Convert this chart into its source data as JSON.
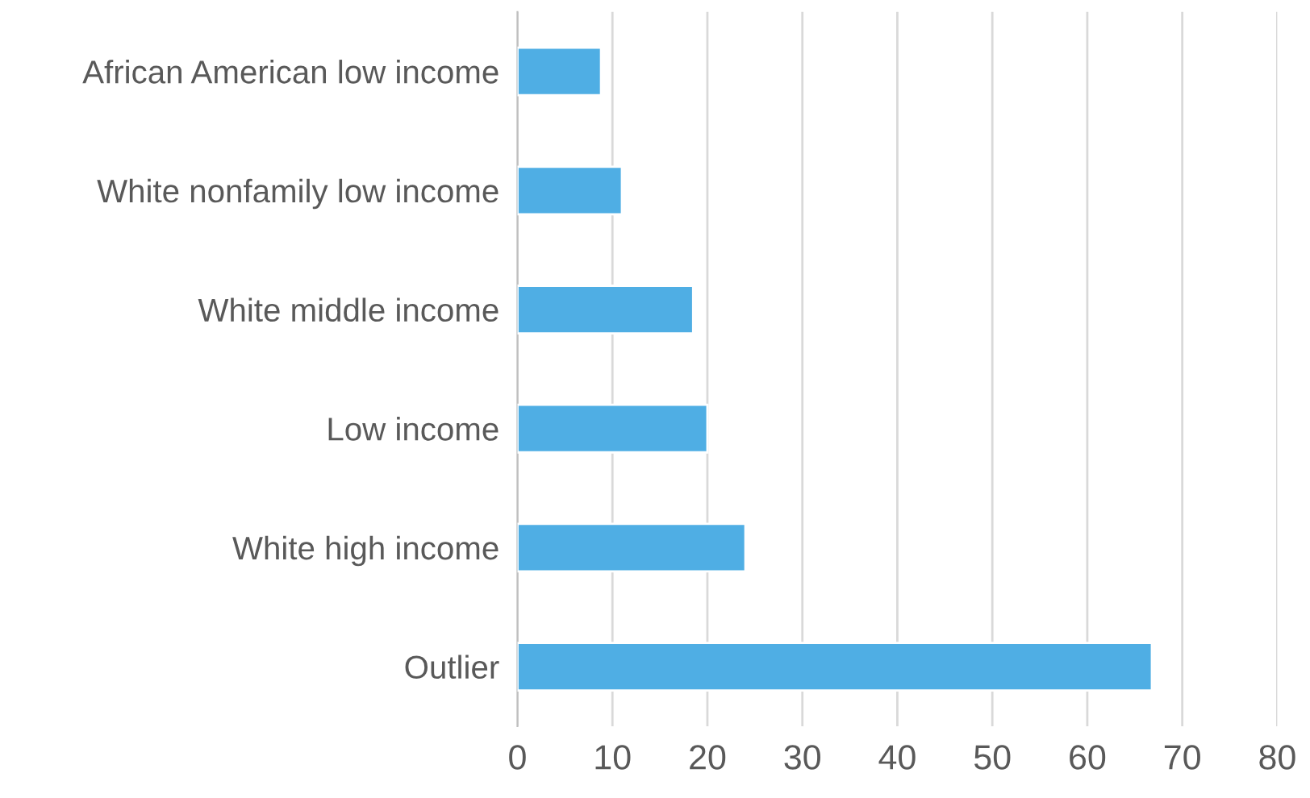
{
  "chart_data": {
    "type": "bar",
    "orientation": "horizontal",
    "categories": [
      "African American low income",
      "White nonfamily low income",
      "White middle income",
      "Low income",
      "White high income",
      "Outlier"
    ],
    "values": [
      8.8,
      11,
      18.5,
      20,
      24,
      66.8
    ],
    "color": "#4faee4",
    "xlim": [
      0,
      80
    ],
    "xticks": [
      0,
      10,
      20,
      30,
      40,
      50,
      60,
      70,
      80
    ],
    "grid": "x",
    "legend": false
  }
}
